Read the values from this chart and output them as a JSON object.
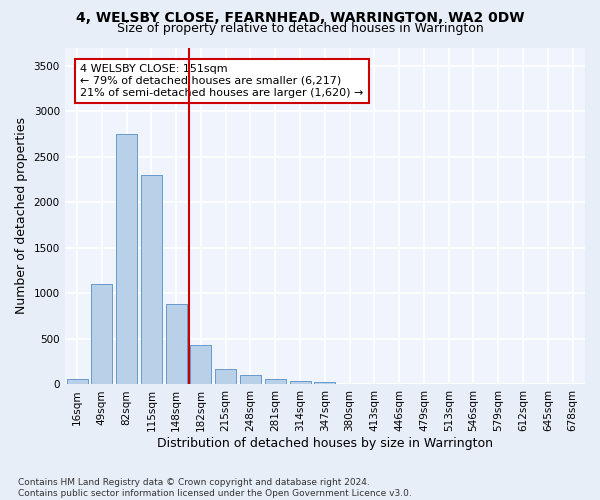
{
  "title_line1": "4, WELSBY CLOSE, FEARNHEAD, WARRINGTON, WA2 0DW",
  "title_line2": "Size of property relative to detached houses in Warrington",
  "xlabel": "Distribution of detached houses by size in Warrington",
  "ylabel": "Number of detached properties",
  "categories": [
    "16sqm",
    "49sqm",
    "82sqm",
    "115sqm",
    "148sqm",
    "182sqm",
    "215sqm",
    "248sqm",
    "281sqm",
    "314sqm",
    "347sqm",
    "380sqm",
    "413sqm",
    "446sqm",
    "479sqm",
    "513sqm",
    "546sqm",
    "579sqm",
    "612sqm",
    "645sqm",
    "678sqm"
  ],
  "values": [
    55,
    1100,
    2750,
    2300,
    880,
    430,
    175,
    105,
    60,
    35,
    28,
    10,
    10,
    5,
    0,
    0,
    0,
    0,
    0,
    0,
    0
  ],
  "bar_color": "#b8d0e8",
  "bar_edge_color": "#6699cc",
  "vline_x": 4.5,
  "vline_color": "#cc0000",
  "annotation_text": "4 WELSBY CLOSE: 151sqm\n← 79% of detached houses are smaller (6,217)\n21% of semi-detached houses are larger (1,620) →",
  "annotation_box_color": "white",
  "annotation_box_edge_color": "#cc0000",
  "ylim": [
    0,
    3700
  ],
  "yticks": [
    0,
    500,
    1000,
    1500,
    2000,
    2500,
    3000,
    3500
  ],
  "bg_color": "#e8eef8",
  "plot_bg_color": "#f0f4fc",
  "grid_color": "#ffffff",
  "footnote": "Contains HM Land Registry data © Crown copyright and database right 2024.\nContains public sector information licensed under the Open Government Licence v3.0.",
  "title_fontsize": 10,
  "subtitle_fontsize": 9,
  "xlabel_fontsize": 9,
  "ylabel_fontsize": 9,
  "tick_fontsize": 7.5,
  "annotation_fontsize": 8,
  "footnote_fontsize": 6.5
}
